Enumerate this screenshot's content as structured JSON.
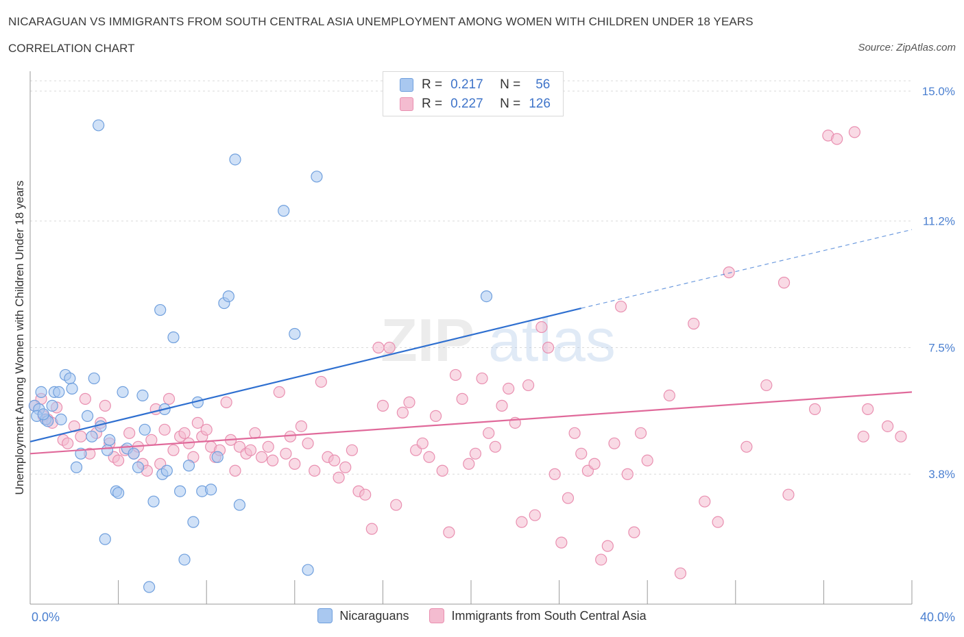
{
  "title": "NICARAGUAN VS IMMIGRANTS FROM SOUTH CENTRAL ASIA UNEMPLOYMENT AMONG WOMEN WITH CHILDREN UNDER 18 YEARS",
  "subtitle": "CORRELATION CHART",
  "source": "Source: ZipAtlas.com",
  "watermark": {
    "zip": "ZIP",
    "atlas": "atlas"
  },
  "colors": {
    "blue_fill": "#a9c8f0",
    "blue_stroke": "#6f9fdd",
    "blue_line": "#2e6fd0",
    "pink_fill": "#f4bcd0",
    "pink_stroke": "#e98fb0",
    "pink_line": "#e0699a",
    "axis_text": "#4a7fd0",
    "grid": "#d9d9d9"
  },
  "legend": {
    "r_label": "R =",
    "n_label": "N =",
    "series": [
      {
        "r": "0.217",
        "n": "56"
      },
      {
        "r": "0.227",
        "n": "126"
      }
    ]
  },
  "bottom_legend": [
    "Nicaraguans",
    "Immigrants from South Central Asia"
  ],
  "chart_data": {
    "type": "scatter",
    "title": "NICARAGUAN VS IMMIGRANTS FROM SOUTH CENTRAL ASIA UNEMPLOYMENT AMONG WOMEN WITH CHILDREN UNDER 18 YEARS",
    "xlabel": "",
    "ylabel": "Unemployment Among Women with Children Under 18 years",
    "xlim": [
      0,
      40
    ],
    "ylim": [
      0,
      15.3
    ],
    "x_tick_labels": [
      "0.0%",
      "40.0%"
    ],
    "y_ticks": [
      3.8,
      7.5,
      11.2,
      15.0
    ],
    "y_tick_labels": [
      "3.8%",
      "7.5%",
      "11.2%",
      "15.0%"
    ],
    "grid": true,
    "legend_position": "top-center",
    "series": [
      {
        "name": "Nicaraguans",
        "color": "#a9c8f0",
        "trend": {
          "x": [
            0,
            25
          ],
          "y": [
            4.75,
            8.65
          ],
          "dashed_to": [
            40,
            10.95
          ]
        },
        "points": [
          [
            0.2,
            5.8
          ],
          [
            0.5,
            6.2
          ],
          [
            0.4,
            5.7
          ],
          [
            0.3,
            5.5
          ],
          [
            0.7,
            5.4
          ],
          [
            0.8,
            5.35
          ],
          [
            1.0,
            5.8
          ],
          [
            1.1,
            6.2
          ],
          [
            1.4,
            5.4
          ],
          [
            1.6,
            6.7
          ],
          [
            1.8,
            6.6
          ],
          [
            1.9,
            6.3
          ],
          [
            2.1,
            4.0
          ],
          [
            2.3,
            4.4
          ],
          [
            2.6,
            5.5
          ],
          [
            2.8,
            4.9
          ],
          [
            2.9,
            6.6
          ],
          [
            3.1,
            14.0
          ],
          [
            3.2,
            5.2
          ],
          [
            3.4,
            1.9
          ],
          [
            3.5,
            4.5
          ],
          [
            3.6,
            4.8
          ],
          [
            3.9,
            3.3
          ],
          [
            4.0,
            3.25
          ],
          [
            4.2,
            6.2
          ],
          [
            4.4,
            4.55
          ],
          [
            4.7,
            4.4
          ],
          [
            4.9,
            4.0
          ],
          [
            5.1,
            6.1
          ],
          [
            5.2,
            5.1
          ],
          [
            5.4,
            0.5
          ],
          [
            5.6,
            3.0
          ],
          [
            5.9,
            8.6
          ],
          [
            6.0,
            3.8
          ],
          [
            6.2,
            3.9
          ],
          [
            6.5,
            7.8
          ],
          [
            6.8,
            3.3
          ],
          [
            7.0,
            1.3
          ],
          [
            7.2,
            4.05
          ],
          [
            7.4,
            2.4
          ],
          [
            7.6,
            5.9
          ],
          [
            7.8,
            3.3
          ],
          [
            8.2,
            3.35
          ],
          [
            8.5,
            4.3
          ],
          [
            8.8,
            8.8
          ],
          [
            9.0,
            9.0
          ],
          [
            9.3,
            13.0
          ],
          [
            9.5,
            2.9
          ],
          [
            11.5,
            11.5
          ],
          [
            12.0,
            7.9
          ],
          [
            12.6,
            1.0
          ],
          [
            13.0,
            12.5
          ],
          [
            20.7,
            9.0
          ],
          [
            0.6,
            5.55
          ],
          [
            1.3,
            6.2
          ],
          [
            6.1,
            5.7
          ]
        ]
      },
      {
        "name": "Immigrants from South Central Asia",
        "color": "#f4bcd0",
        "trend": {
          "x": [
            0,
            40
          ],
          "y": [
            4.4,
            6.2
          ]
        },
        "points": [
          [
            0.2,
            5.8
          ],
          [
            0.5,
            6.0
          ],
          [
            0.6,
            5.5
          ],
          [
            0.8,
            5.4
          ],
          [
            1.0,
            5.3
          ],
          [
            1.2,
            5.75
          ],
          [
            1.5,
            4.8
          ],
          [
            1.7,
            4.7
          ],
          [
            2.0,
            5.2
          ],
          [
            2.3,
            4.9
          ],
          [
            2.5,
            6.0
          ],
          [
            2.7,
            4.4
          ],
          [
            3.0,
            5.0
          ],
          [
            3.2,
            5.3
          ],
          [
            3.4,
            5.8
          ],
          [
            3.6,
            4.7
          ],
          [
            3.8,
            4.3
          ],
          [
            4.0,
            4.2
          ],
          [
            4.3,
            4.5
          ],
          [
            4.5,
            5.0
          ],
          [
            4.7,
            4.4
          ],
          [
            4.9,
            4.6
          ],
          [
            5.1,
            4.1
          ],
          [
            5.3,
            3.9
          ],
          [
            5.5,
            4.8
          ],
          [
            5.7,
            5.7
          ],
          [
            5.9,
            4.1
          ],
          [
            6.1,
            5.1
          ],
          [
            6.3,
            6.0
          ],
          [
            6.5,
            4.5
          ],
          [
            6.8,
            4.9
          ],
          [
            7.0,
            5.0
          ],
          [
            7.2,
            4.7
          ],
          [
            7.4,
            4.3
          ],
          [
            7.6,
            5.3
          ],
          [
            7.8,
            4.9
          ],
          [
            8.0,
            5.1
          ],
          [
            8.2,
            4.6
          ],
          [
            8.4,
            4.3
          ],
          [
            8.6,
            4.5
          ],
          [
            8.9,
            5.9
          ],
          [
            9.1,
            4.8
          ],
          [
            9.3,
            3.9
          ],
          [
            9.5,
            4.6
          ],
          [
            9.8,
            4.4
          ],
          [
            10.0,
            4.5
          ],
          [
            10.2,
            5.0
          ],
          [
            10.5,
            4.3
          ],
          [
            10.8,
            4.6
          ],
          [
            11.0,
            4.2
          ],
          [
            11.3,
            6.2
          ],
          [
            11.6,
            4.4
          ],
          [
            11.8,
            4.9
          ],
          [
            12.0,
            4.1
          ],
          [
            12.3,
            5.2
          ],
          [
            12.6,
            4.7
          ],
          [
            12.9,
            3.9
          ],
          [
            13.2,
            6.5
          ],
          [
            13.5,
            4.3
          ],
          [
            13.8,
            4.2
          ],
          [
            14.0,
            3.7
          ],
          [
            14.3,
            4.0
          ],
          [
            14.6,
            4.5
          ],
          [
            14.9,
            3.3
          ],
          [
            15.2,
            3.2
          ],
          [
            15.5,
            2.2
          ],
          [
            15.8,
            7.5
          ],
          [
            16.0,
            5.8
          ],
          [
            16.3,
            7.5
          ],
          [
            16.6,
            2.9
          ],
          [
            16.9,
            5.6
          ],
          [
            17.2,
            5.9
          ],
          [
            17.5,
            4.5
          ],
          [
            17.8,
            4.7
          ],
          [
            18.1,
            4.3
          ],
          [
            18.4,
            5.5
          ],
          [
            18.7,
            3.9
          ],
          [
            19.0,
            2.1
          ],
          [
            19.3,
            6.7
          ],
          [
            19.6,
            6.0
          ],
          [
            19.9,
            4.1
          ],
          [
            20.2,
            4.4
          ],
          [
            20.5,
            6.6
          ],
          [
            20.8,
            5.0
          ],
          [
            21.1,
            4.6
          ],
          [
            21.4,
            5.8
          ],
          [
            21.7,
            6.3
          ],
          [
            22.0,
            5.3
          ],
          [
            22.3,
            2.4
          ],
          [
            22.6,
            6.4
          ],
          [
            22.9,
            2.6
          ],
          [
            23.2,
            8.1
          ],
          [
            23.5,
            7.5
          ],
          [
            23.8,
            3.8
          ],
          [
            24.1,
            1.8
          ],
          [
            24.4,
            3.1
          ],
          [
            24.7,
            5.0
          ],
          [
            25.0,
            4.4
          ],
          [
            25.3,
            3.9
          ],
          [
            25.6,
            4.1
          ],
          [
            25.9,
            1.3
          ],
          [
            26.2,
            1.7
          ],
          [
            26.5,
            4.7
          ],
          [
            26.8,
            8.7
          ],
          [
            27.1,
            3.8
          ],
          [
            27.4,
            2.1
          ],
          [
            27.7,
            5.0
          ],
          [
            29.5,
            0.9
          ],
          [
            30.1,
            8.2
          ],
          [
            30.6,
            3.0
          ],
          [
            31.2,
            2.4
          ],
          [
            31.7,
            9.7
          ],
          [
            33.4,
            6.4
          ],
          [
            34.2,
            9.4
          ],
          [
            34.4,
            3.2
          ],
          [
            35.6,
            5.7
          ],
          [
            36.2,
            13.7
          ],
          [
            36.6,
            13.6
          ],
          [
            37.4,
            13.8
          ],
          [
            37.8,
            4.9
          ],
          [
            38.0,
            5.7
          ],
          [
            38.9,
            5.2
          ],
          [
            39.5,
            4.9
          ],
          [
            28.0,
            4.2
          ],
          [
            29.0,
            6.1
          ],
          [
            32.5,
            4.6
          ]
        ]
      }
    ]
  }
}
